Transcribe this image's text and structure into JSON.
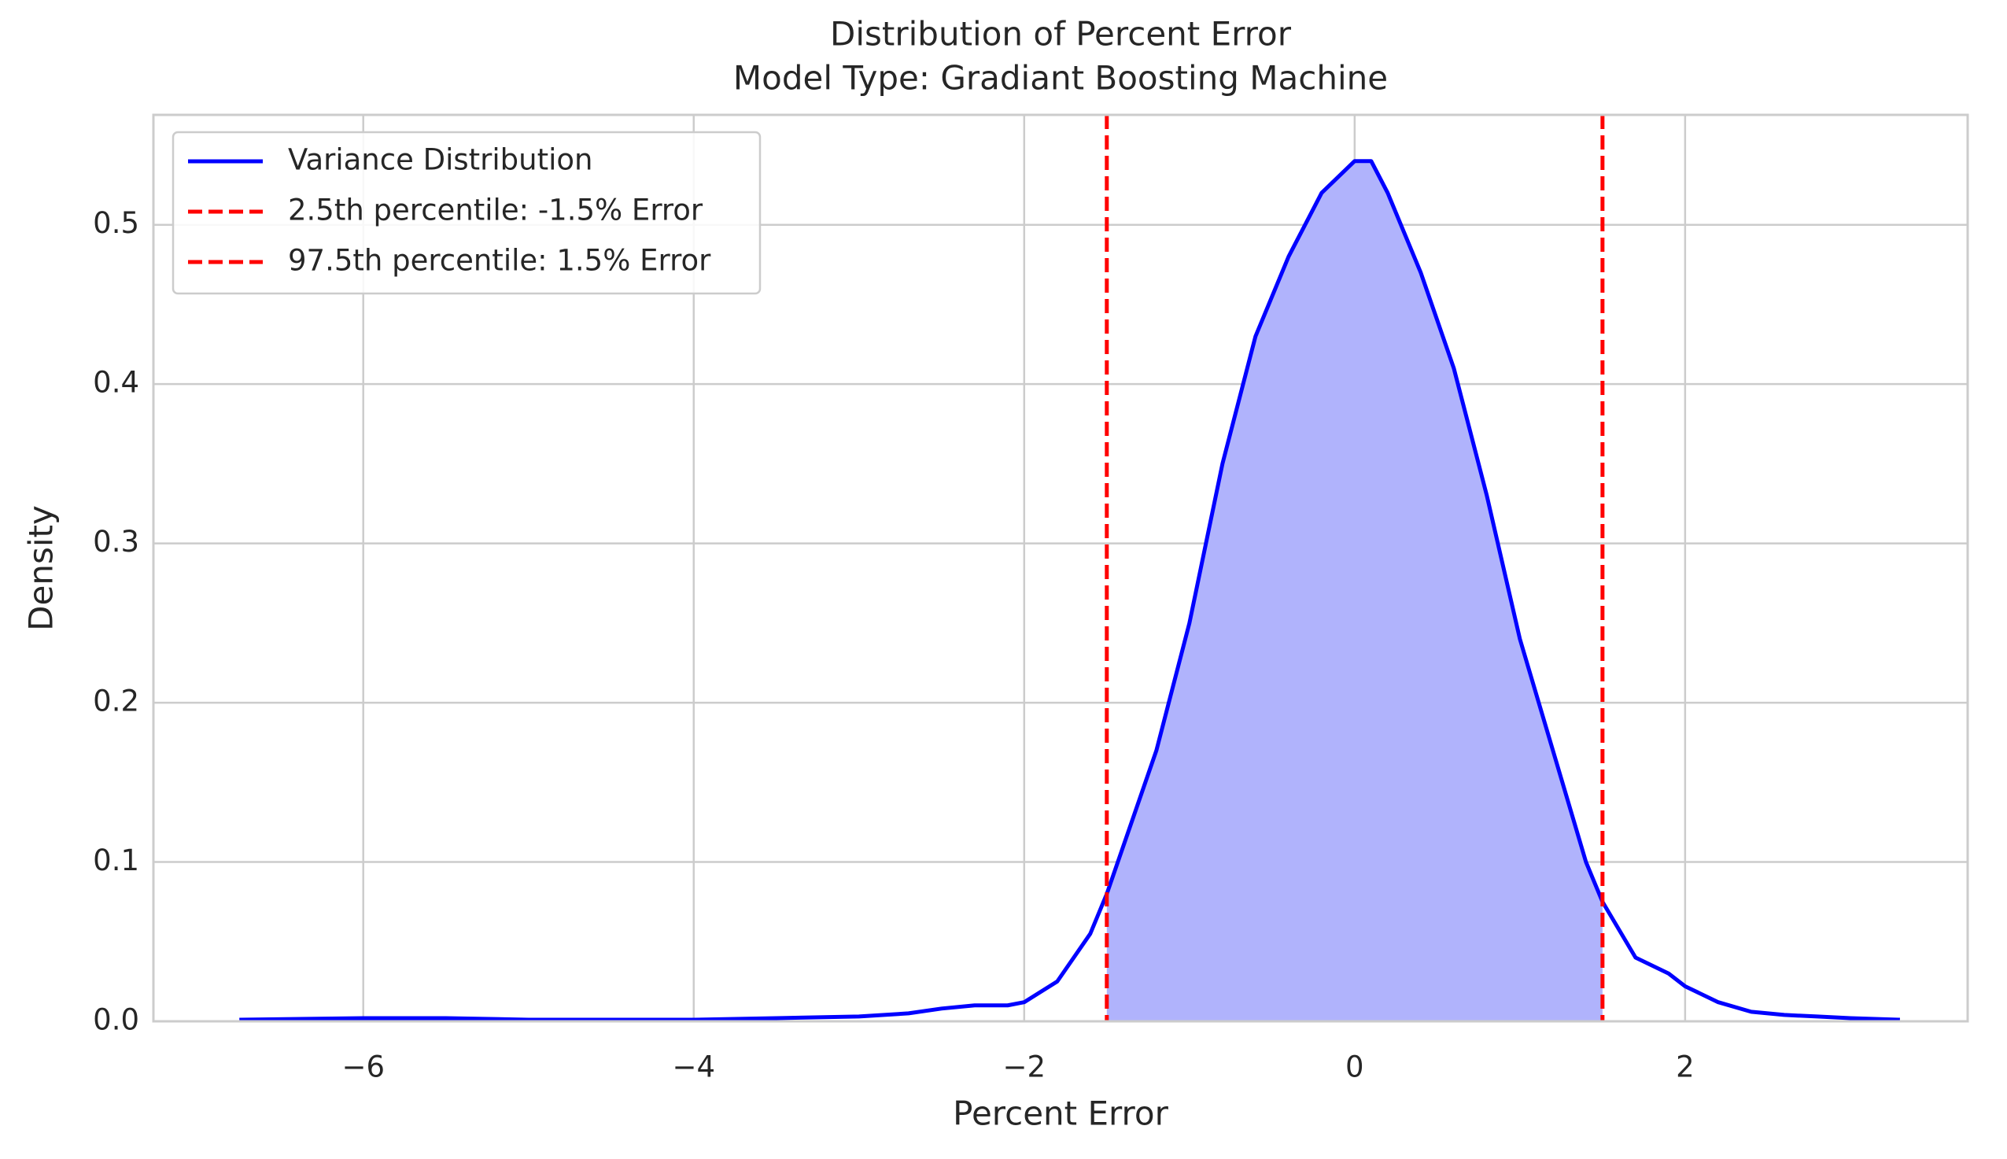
{
  "chart_data": {
    "type": "kde",
    "title": "Distribution of Percent Error",
    "subtitle": "Model Type:  Gradiant Boosting Machine",
    "x_label": "Percent Error",
    "y_label": "Density",
    "x": [
      -6.75,
      -6,
      -5.5,
      -5,
      -4,
      -3.5,
      -3,
      -2.7,
      -2.5,
      -2.3,
      -2.1,
      -2.0,
      -1.8,
      -1.6,
      -1.5,
      -1.2,
      -1.0,
      -0.8,
      -0.6,
      -0.4,
      -0.2,
      0,
      0.1,
      0.2,
      0.4,
      0.6,
      0.8,
      1.0,
      1.2,
      1.4,
      1.5,
      1.7,
      1.9,
      2.0,
      2.2,
      2.4,
      2.6,
      2.8,
      3.0,
      3.3
    ],
    "series": [
      {
        "name": "Variance Distribution",
        "color": "#0000ff",
        "fill": "#b0b3fc",
        "values": [
          0.001,
          0.002,
          0.002,
          0.001,
          0.001,
          0.002,
          0.003,
          0.005,
          0.008,
          0.01,
          0.01,
          0.012,
          0.025,
          0.055,
          0.08,
          0.17,
          0.25,
          0.35,
          0.43,
          0.48,
          0.52,
          0.54,
          0.54,
          0.52,
          0.47,
          0.41,
          0.33,
          0.24,
          0.17,
          0.1,
          0.075,
          0.04,
          0.03,
          0.022,
          0.012,
          0.006,
          0.004,
          0.003,
          0.002,
          0.001
        ]
      }
    ],
    "vlines": [
      {
        "name": "2.5th percentile: -1.5% Error",
        "x": -1.5,
        "color": "#ff0000"
      },
      {
        "name": "97.5th percentile: 1.5% Error",
        "x": 1.5,
        "color": "#ff0000"
      }
    ],
    "xlim": [
      -7.27,
      3.71
    ],
    "ylim": [
      0,
      0.569
    ],
    "xticks": [
      {
        "value": -6,
        "label": "−6"
      },
      {
        "value": -4,
        "label": "−4"
      },
      {
        "value": -2,
        "label": "−2"
      },
      0,
      2
    ],
    "yticks": [
      {
        "value": 0,
        "label": "0.0"
      },
      0.1,
      0.2,
      0.3,
      0.4,
      0.5
    ],
    "grid": true,
    "legend": "upper left"
  }
}
